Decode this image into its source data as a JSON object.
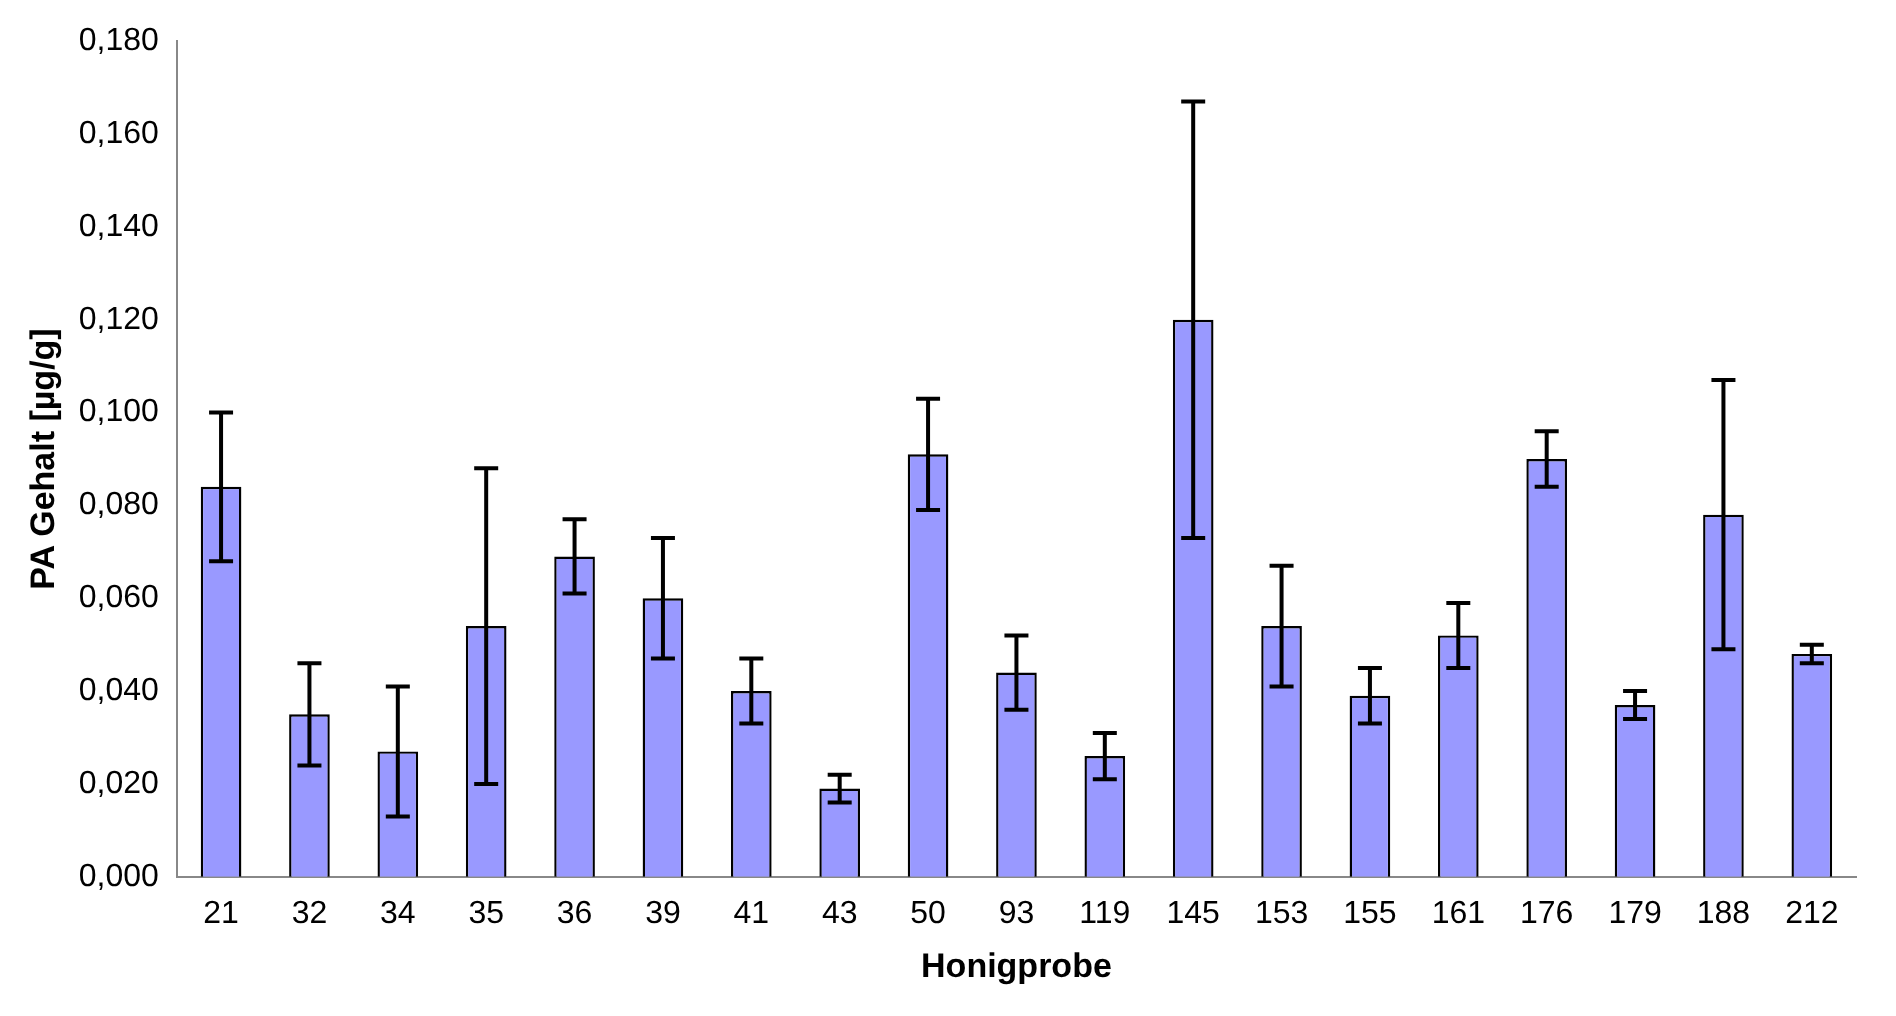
{
  "chart_data": {
    "type": "bar",
    "xlabel": "Honigprobe",
    "ylabel": "PA Gehalt [µg/g]",
    "categories": [
      "21",
      "32",
      "34",
      "35",
      "36",
      "39",
      "41",
      "43",
      "50",
      "93",
      "119",
      "145",
      "153",
      "155",
      "161",
      "176",
      "179",
      "188",
      "212"
    ],
    "values": [
      0.084,
      0.035,
      0.027,
      0.054,
      0.069,
      0.06,
      0.04,
      0.019,
      0.091,
      0.044,
      0.026,
      0.12,
      0.054,
      0.039,
      0.052,
      0.09,
      0.037,
      0.078,
      0.048
    ],
    "errors": [
      0.016,
      0.011,
      0.014,
      0.034,
      0.008,
      0.013,
      0.007,
      0.003,
      0.012,
      0.008,
      0.005,
      0.047,
      0.013,
      0.006,
      0.007,
      0.006,
      0.003,
      0.029,
      0.002
    ],
    "color": "#9999ff",
    "ylim": [
      0,
      0.18
    ],
    "yticks": [
      {
        "value": 0,
        "label": "0,000"
      },
      {
        "value": 0.02,
        "label": "0,020"
      },
      {
        "value": 0.04,
        "label": "0,040"
      },
      {
        "value": 0.06,
        "label": "0,060"
      },
      {
        "value": 0.08,
        "label": "0,080"
      },
      {
        "value": 0.1,
        "label": "0,100"
      },
      {
        "value": 0.12,
        "label": "0,120"
      },
      {
        "value": 0.14,
        "label": "0,140"
      },
      {
        "value": 0.16,
        "label": "0,160"
      },
      {
        "value": 0.18,
        "label": "0,180"
      }
    ],
    "grid": false,
    "legend": false
  }
}
